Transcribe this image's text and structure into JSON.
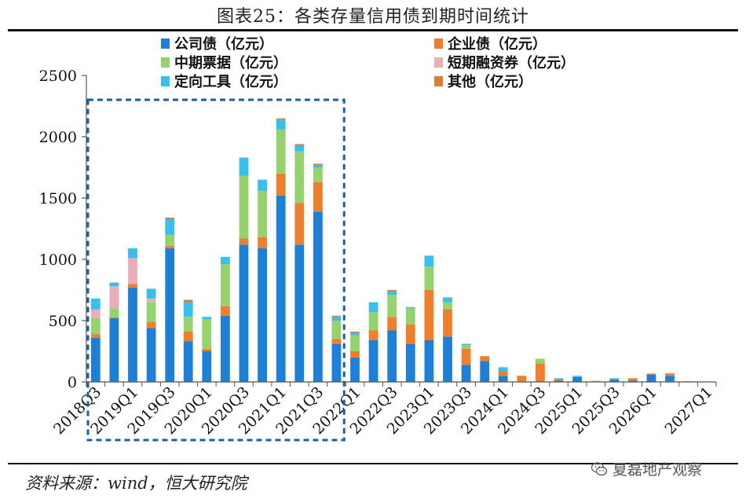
{
  "page": {
    "title": "图表25：各类存量信用债到期时间统计",
    "source": "资料来源：wind，恒大研究院",
    "watermark": "夏磊地产观察"
  },
  "colors": {
    "corporate_bond": "#1e7fd6",
    "enterprise_bond": "#ef7f2c",
    "mtn": "#96d36e",
    "cp": "#e8b0b6",
    "ppn": "#37bfee",
    "other": "#d97f3a",
    "highlight_box": "#1a5f9e"
  },
  "chart_data": {
    "type": "bar",
    "stacked": true,
    "title": "图表25：各类存量信用债到期时间统计",
    "xlabel": "",
    "ylabel": "",
    "ylim": [
      0,
      2500
    ],
    "yticks": [
      0,
      500,
      1000,
      1500,
      2000,
      2500
    ],
    "grid": false,
    "legend": "top",
    "categories": [
      "2018Q3",
      "2018Q4",
      "2019Q1",
      "2019Q2",
      "2019Q3",
      "2019Q4",
      "2020Q1",
      "2020Q2",
      "2020Q3",
      "2020Q4",
      "2021Q1",
      "2021Q2",
      "2021Q3",
      "2021Q4",
      "2022Q1",
      "2022Q2",
      "2022Q3",
      "2022Q4",
      "2023Q1",
      "2023Q2",
      "2023Q3",
      "2023Q4",
      "2024Q1",
      "2024Q2",
      "2024Q3",
      "2024Q4",
      "2025Q1",
      "2025Q2",
      "2025Q3",
      "2025Q4",
      "2026Q1",
      "2026Q2",
      "2026Q3",
      "2027Q1"
    ],
    "xtick_labels": [
      "2018Q3",
      "2019Q1",
      "2019Q3",
      "2020Q1",
      "2020Q3",
      "2021Q1",
      "2021Q3",
      "2022Q1",
      "2022Q3",
      "2023Q1",
      "2023Q3",
      "2024Q1",
      "2024Q3",
      "2025Q1",
      "2025Q3",
      "2026Q1",
      "2027Q1"
    ],
    "series": [
      {
        "name": "公司债（亿元）",
        "color_key": "corporate_bond",
        "values": [
          360,
          520,
          770,
          440,
          1090,
          330,
          250,
          540,
          1120,
          1090,
          1520,
          1120,
          1390,
          310,
          200,
          340,
          420,
          310,
          340,
          370,
          140,
          170,
          50,
          0,
          0,
          10,
          40,
          0,
          20,
          10,
          60,
          50,
          0,
          0
        ]
      },
      {
        "name": "企业债（亿元）",
        "color_key": "enterprise_bond",
        "values": [
          30,
          10,
          30,
          50,
          20,
          80,
          20,
          80,
          50,
          90,
          180,
          340,
          240,
          40,
          50,
          80,
          110,
          160,
          410,
          220,
          130,
          40,
          40,
          50,
          150,
          10,
          0,
          5,
          5,
          20,
          5,
          20,
          5,
          0
        ]
      },
      {
        "name": "中期票据（亿元）",
        "color_key": "mtn",
        "values": [
          130,
          70,
          0,
          160,
          90,
          120,
          240,
          340,
          510,
          380,
          360,
          420,
          120,
          150,
          130,
          150,
          180,
          130,
          190,
          60,
          30,
          0,
          0,
          0,
          40,
          0,
          0,
          5,
          0,
          0,
          5,
          0,
          0,
          0
        ]
      },
      {
        "name": "短期融资券（亿元）",
        "color_key": "cp",
        "values": [
          70,
          180,
          210,
          30,
          0,
          0,
          0,
          0,
          0,
          0,
          0,
          0,
          0,
          0,
          0,
          0,
          0,
          0,
          0,
          0,
          0,
          0,
          0,
          0,
          0,
          0,
          0,
          0,
          0,
          0,
          0,
          0,
          0,
          0
        ]
      },
      {
        "name": "定向工具（亿元）",
        "color_key": "ppn",
        "values": [
          90,
          30,
          80,
          80,
          130,
          120,
          20,
          60,
          150,
          90,
          80,
          50,
          20,
          30,
          20,
          80,
          30,
          10,
          90,
          40,
          10,
          0,
          30,
          0,
          0,
          10,
          10,
          0,
          5,
          0,
          0,
          0,
          0,
          0
        ]
      },
      {
        "name": "其他（亿元）",
        "color_key": "other",
        "values": [
          0,
          0,
          0,
          0,
          10,
          20,
          0,
          0,
          0,
          0,
          10,
          10,
          10,
          10,
          10,
          0,
          10,
          0,
          0,
          0,
          0,
          0,
          0,
          0,
          0,
          0,
          0,
          0,
          0,
          0,
          0,
          0,
          0,
          0
        ]
      }
    ],
    "highlight": {
      "from": "2018Q3",
      "to": "2021Q4",
      "style": "dashed"
    }
  }
}
